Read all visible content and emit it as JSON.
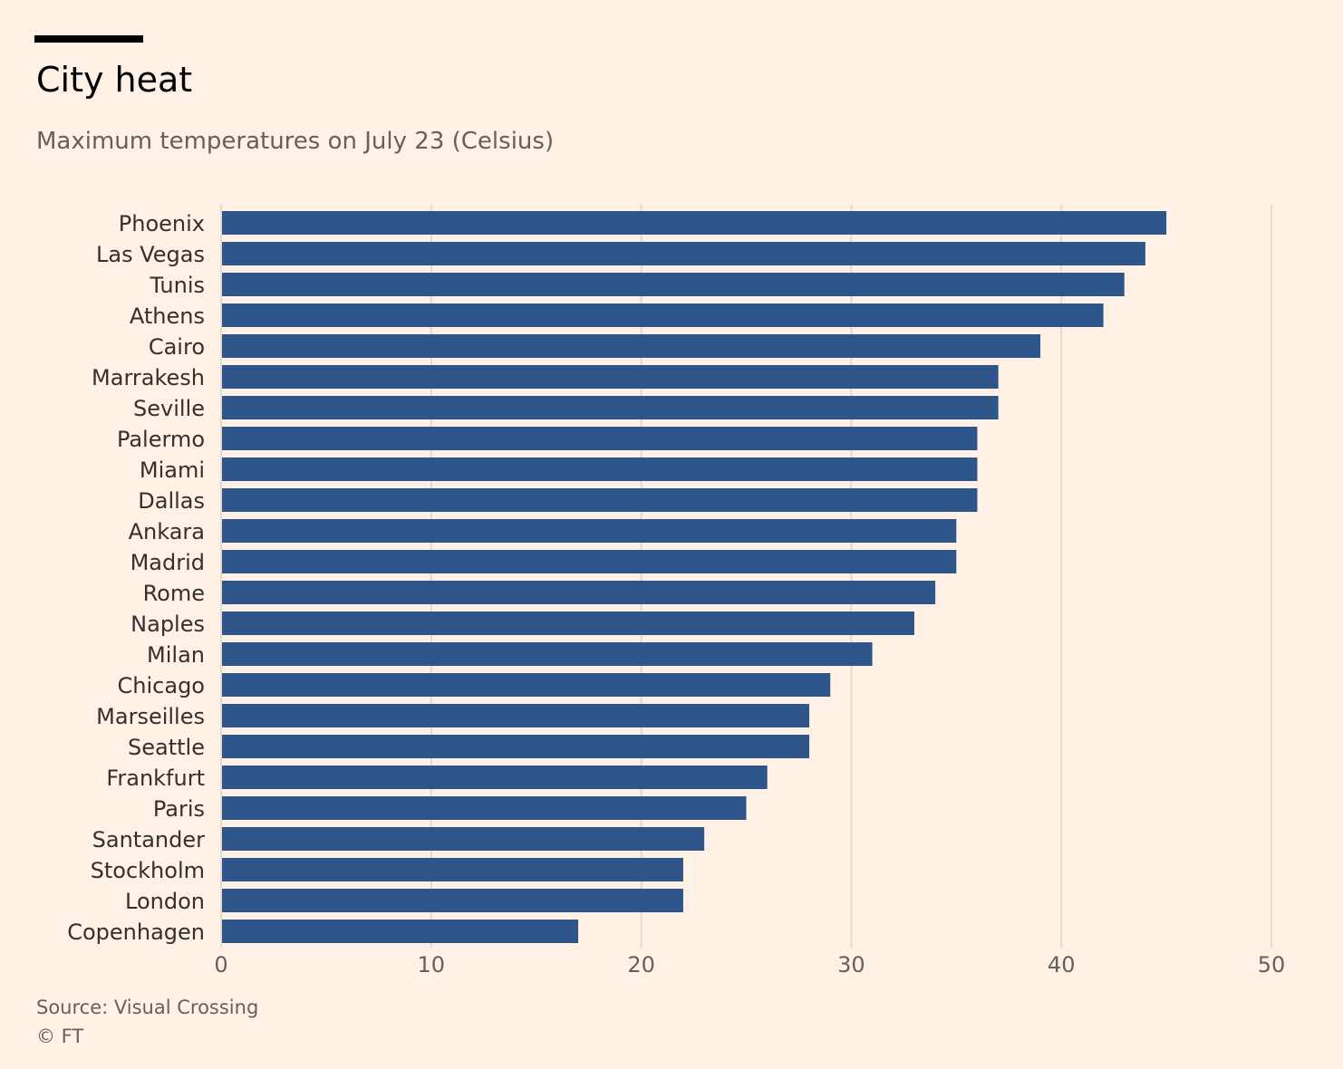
{
  "header": {
    "title": "City heat",
    "subtitle": "Maximum temperatures on July 23 (Celsius)"
  },
  "footer": {
    "source": "Source: Visual Crossing",
    "copyright": "© FT"
  },
  "colors": {
    "background": "#FFF1E5",
    "bar": "#2E5589",
    "gridline": "#E6D9CE",
    "text": "#33302E",
    "muted_text": "#66605C"
  },
  "chart_data": {
    "type": "bar",
    "orientation": "horizontal",
    "title": "City heat",
    "subtitle": "Maximum temperatures on July 23 (Celsius)",
    "categories": [
      "Phoenix",
      "Las Vegas",
      "Tunis",
      "Athens",
      "Cairo",
      "Marrakesh",
      "Seville",
      "Palermo",
      "Miami",
      "Dallas",
      "Ankara",
      "Madrid",
      "Rome",
      "Naples",
      "Milan",
      "Chicago",
      "Marseilles",
      "Seattle",
      "Frankfurt",
      "Paris",
      "Santander",
      "Stockholm",
      "London",
      "Copenhagen"
    ],
    "values": [
      45,
      44,
      43,
      42,
      39,
      37,
      37,
      36,
      36,
      36,
      35,
      35,
      34,
      33,
      31,
      29,
      28,
      28,
      26,
      25,
      23,
      22,
      22,
      17
    ],
    "xlim": [
      0,
      50
    ],
    "xticks": [
      0,
      10,
      20,
      30,
      40,
      50
    ],
    "grid": "vertical",
    "legend": "none"
  }
}
